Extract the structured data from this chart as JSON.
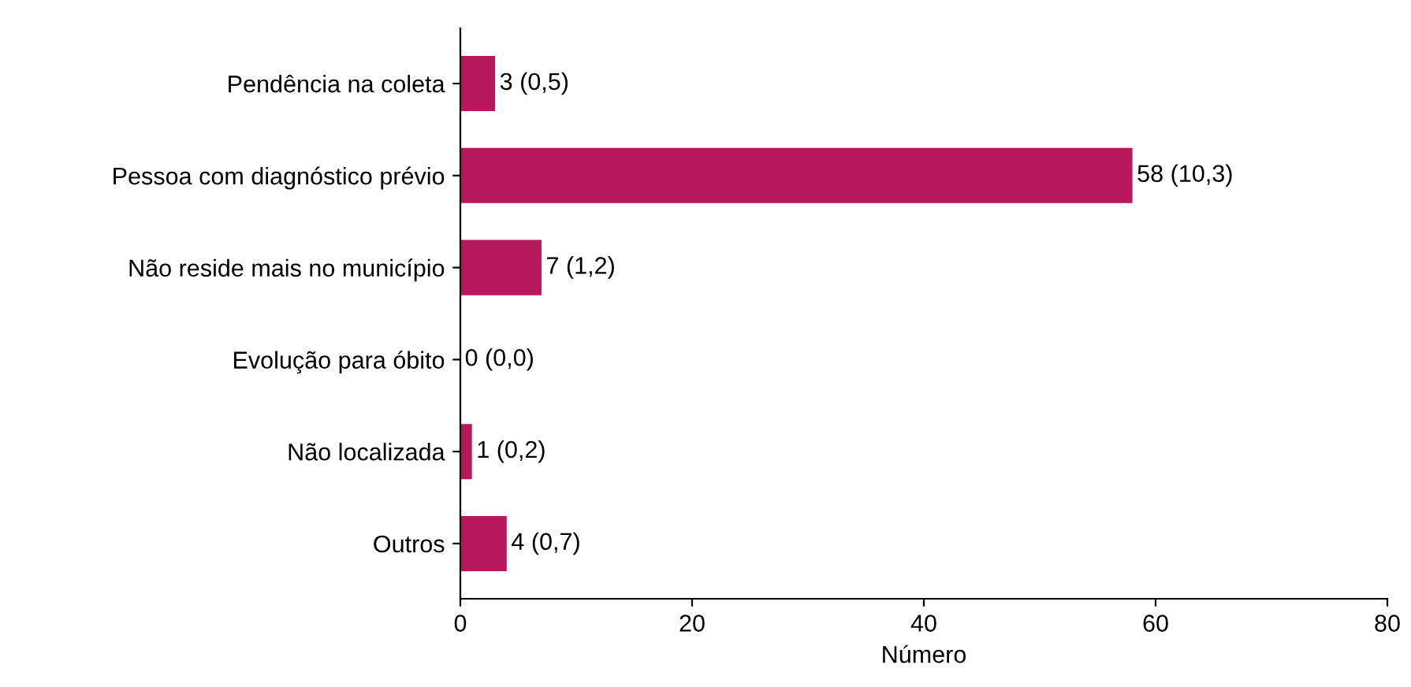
{
  "chart_data": {
    "type": "bar",
    "orientation": "horizontal",
    "categories": [
      "Pendência na coleta",
      "Pessoa com diagnóstico prévio",
      "Não reside mais no município",
      "Evolução para óbito",
      "Não localizada",
      "Outros"
    ],
    "values": [
      3,
      58,
      7,
      0,
      1,
      4
    ],
    "value_labels": [
      "3 (0,5)",
      "58 (10,3)",
      "7 (1,2)",
      "0 (0,0)",
      "1 (0,2)",
      "4 (0,7)"
    ],
    "color": "#b5195b",
    "xlabel": "Número",
    "xlim": [
      0,
      80
    ],
    "xticks": [
      0,
      20,
      40,
      60,
      80
    ],
    "grid": false,
    "legend": false
  }
}
